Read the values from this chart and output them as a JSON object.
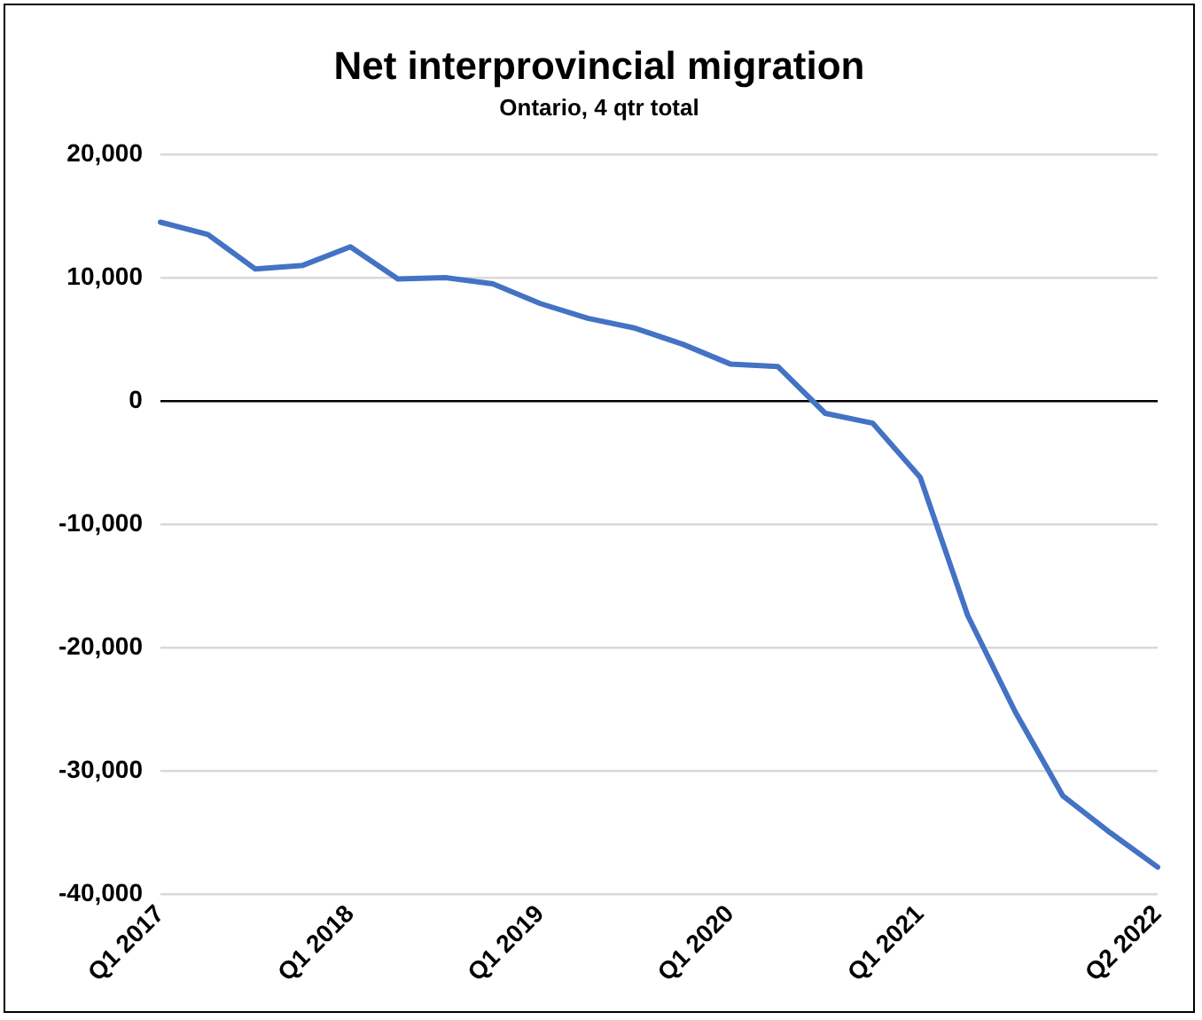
{
  "chart_data": {
    "type": "line",
    "title": "Net interprovincial migration",
    "subtitle": "Ontario, 4 qtr total",
    "categories": [
      "Q1 2017",
      null,
      null,
      null,
      "Q1 2018",
      null,
      null,
      null,
      "Q1 2019",
      null,
      null,
      null,
      "Q1 2020",
      null,
      null,
      null,
      "Q1 2021",
      null,
      null,
      null,
      null,
      "Q2 2022"
    ],
    "series": [
      {
        "color": "#4472c4",
        "values": [
          14500,
          13500,
          10700,
          11000,
          12500,
          9900,
          10000,
          9500,
          7900,
          6700,
          5900,
          4600,
          3000,
          2800,
          -1000,
          -1800,
          -6200,
          -17400,
          -25200,
          -32000,
          -35000,
          -37800
        ]
      }
    ],
    "ylim": [
      -40000,
      20000
    ],
    "yticks": [
      {
        "value": -40000,
        "label": "-40,000"
      },
      {
        "value": -30000,
        "label": "-30,000"
      },
      {
        "value": -20000,
        "label": "-20,000"
      },
      {
        "value": -10000,
        "label": "-10,000"
      },
      {
        "value": 0,
        "label": "0"
      },
      {
        "value": 10000,
        "label": "10,000"
      },
      {
        "value": 20000,
        "label": "20,000"
      }
    ],
    "grid": "y",
    "legend": false,
    "marker": "none",
    "line_style": "solid"
  }
}
